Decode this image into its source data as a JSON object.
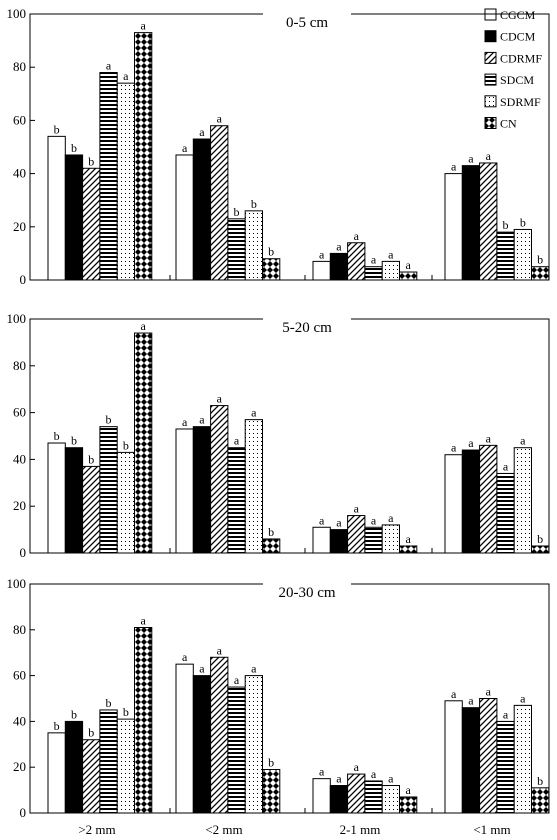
{
  "chart_data": {
    "type": "bar",
    "categories": [
      ">2 mm",
      "<2 mm",
      "2-1 mm",
      "<1 mm"
    ],
    "series_names": [
      "CGCM",
      "CDCM",
      "CDRMF",
      "SDCM",
      "SDRMF",
      "CN"
    ],
    "ylim": [
      0,
      100
    ],
    "yticks": [
      "0",
      "20",
      "40",
      "60",
      "80",
      "100"
    ],
    "legend_position": "top-right",
    "panels": [
      {
        "title": "0-5 cm",
        "values": [
          [
            54,
            47,
            42,
            78,
            74,
            93
          ],
          [
            47,
            53,
            58,
            23,
            26,
            8
          ],
          [
            7,
            10,
            14,
            5,
            7,
            3
          ],
          [
            40,
            43,
            44,
            18,
            19,
            5
          ]
        ],
        "labels": [
          [
            "b",
            "b",
            "b",
            "a",
            "a",
            "a"
          ],
          [
            "a",
            "a",
            "a",
            "b",
            "b",
            "b"
          ],
          [
            "a",
            "a",
            "a",
            "a",
            "a",
            "a"
          ],
          [
            "a",
            "a",
            "a",
            "b",
            "b",
            "b"
          ]
        ]
      },
      {
        "title": "5-20 cm",
        "values": [
          [
            47,
            45,
            37,
            54,
            43,
            94
          ],
          [
            53,
            54,
            63,
            45,
            57,
            6
          ],
          [
            11,
            10,
            16,
            11,
            12,
            3
          ],
          [
            42,
            44,
            46,
            34,
            45,
            3
          ]
        ],
        "labels": [
          [
            "b",
            "b",
            "b",
            "b",
            "b",
            "a"
          ],
          [
            "a",
            "a",
            "a",
            "a",
            "a",
            "b"
          ],
          [
            "a",
            "a",
            "a",
            "a",
            "a",
            "a"
          ],
          [
            "a",
            "a",
            "a",
            "a",
            "a",
            "b"
          ]
        ]
      },
      {
        "title": "20-30 cm",
        "values": [
          [
            35,
            40,
            32,
            45,
            41,
            81
          ],
          [
            65,
            60,
            68,
            55,
            60,
            19
          ],
          [
            15,
            12,
            17,
            14,
            12,
            7
          ],
          [
            49,
            46,
            50,
            40,
            47,
            11
          ]
        ],
        "labels": [
          [
            "b",
            "b",
            "b",
            "b",
            "b",
            "a"
          ],
          [
            "a",
            "a",
            "a",
            "a",
            "a",
            "b"
          ],
          [
            "a",
            "a",
            "a",
            "a",
            "a",
            "a"
          ],
          [
            "a",
            "a",
            "a",
            "a",
            "a",
            "b"
          ]
        ]
      }
    ]
  }
}
